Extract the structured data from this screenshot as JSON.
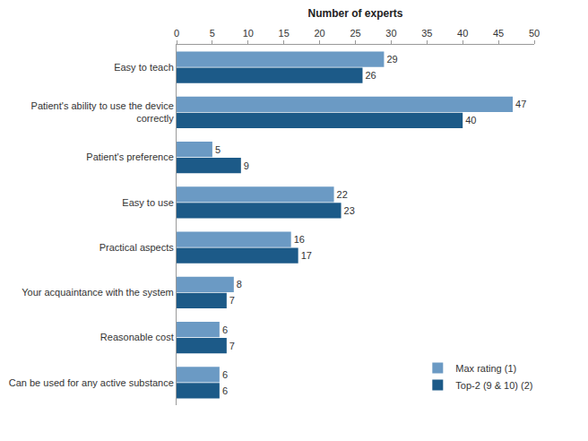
{
  "chart_data": {
    "type": "bar",
    "orientation": "horizontal",
    "x_label": "Number of experts",
    "categories": [
      "Easy to teach",
      "Patient's ability to use the device correctly",
      "Patient's preference",
      "Easy to use",
      "Practical aspects",
      "Your acquaintance with the system",
      "Reasonable cost",
      "Can be used for any active substance"
    ],
    "series": [
      {
        "name": "Max rating (1)",
        "color": "#6b9ac4",
        "values": [
          29,
          47,
          5,
          22,
          16,
          8,
          6,
          6
        ]
      },
      {
        "name": "Top-2 (9 & 10) (2)",
        "color": "#1c5a88",
        "values": [
          26,
          40,
          9,
          23,
          17,
          7,
          7,
          6
        ]
      }
    ],
    "xlim": [
      0,
      50
    ],
    "xticks": [
      0,
      5,
      10,
      15,
      20,
      25,
      30,
      35,
      40,
      45,
      50
    ],
    "grid": false,
    "data_labels": true,
    "legend": "bottom right"
  }
}
